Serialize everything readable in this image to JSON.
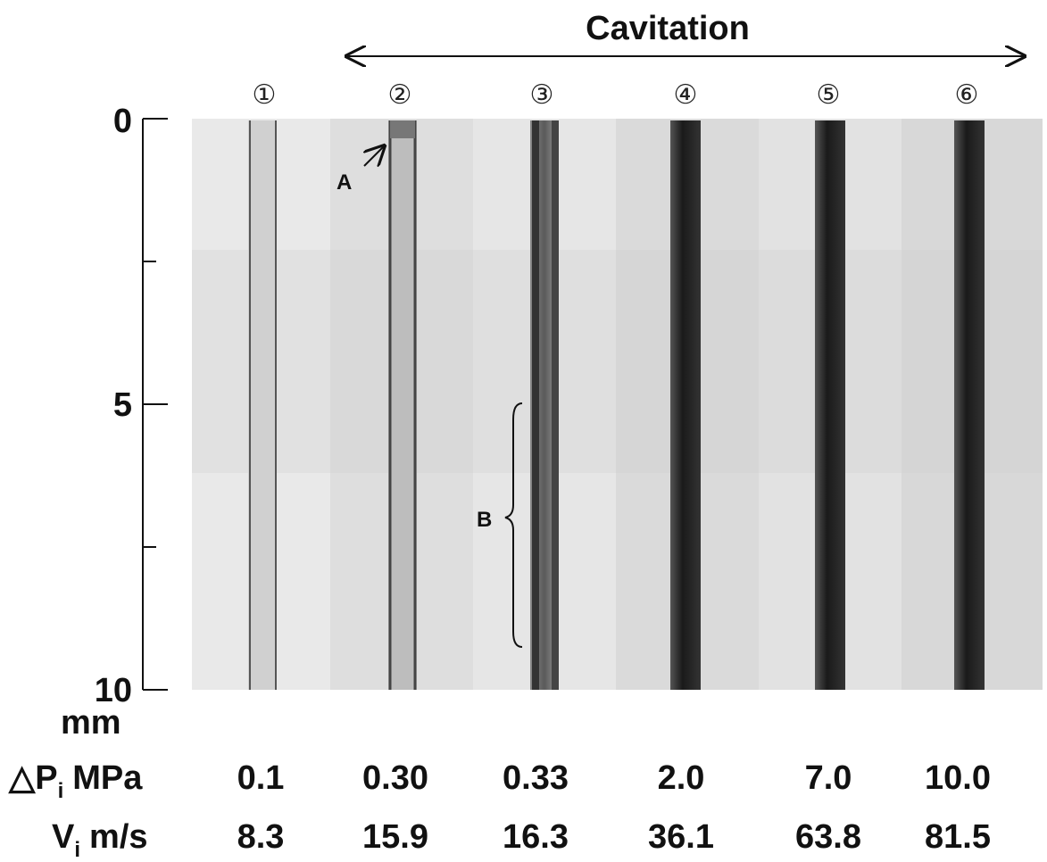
{
  "figure": {
    "title": "Cavitation",
    "panels": [
      "①",
      "②",
      "③",
      "④",
      "⑤",
      "⑥"
    ],
    "scale": {
      "ticks": [
        "0",
        "5",
        "10"
      ],
      "unit": "mm"
    },
    "annotations": {
      "a": "A",
      "b": "B"
    },
    "rows": [
      {
        "symbol": "△P",
        "subscript": "i",
        "unit": "MPa",
        "values": [
          "0.1",
          "0.30",
          "0.33",
          "2.0",
          "7.0",
          "10.0"
        ]
      },
      {
        "symbol": "V",
        "subscript": "i",
        "unit": "m/s",
        "values": [
          "8.3",
          "15.9",
          "16.3",
          "36.1",
          "63.8",
          "81.5"
        ]
      }
    ]
  }
}
